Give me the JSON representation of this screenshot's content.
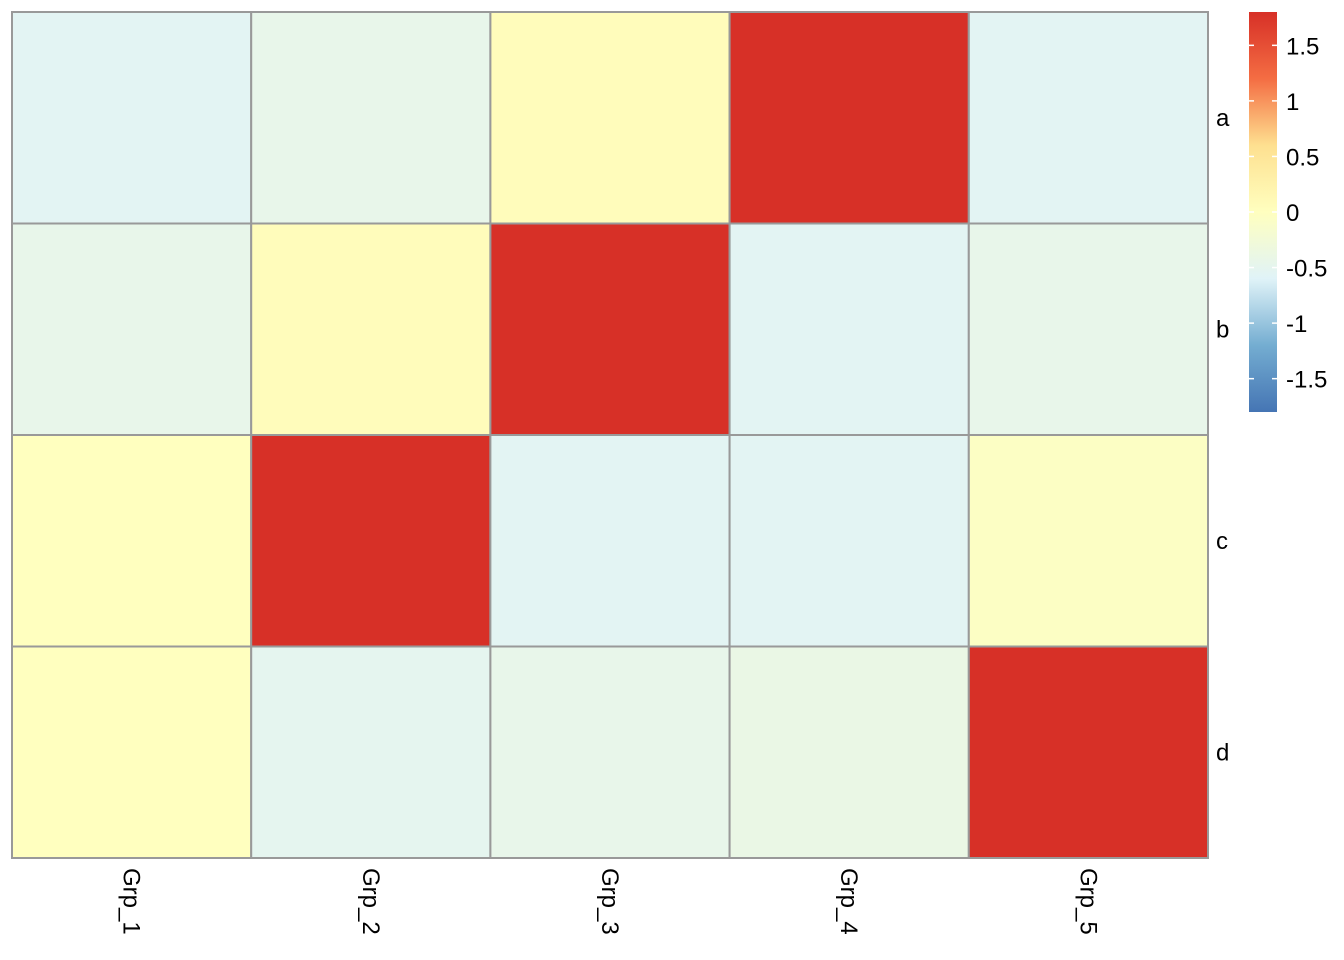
{
  "chart_data": {
    "type": "heatmap",
    "columns": [
      "Grp_1",
      "Grp_2",
      "Grp_3",
      "Grp_4",
      "Grp_5"
    ],
    "rows": [
      "a",
      "b",
      "c",
      "d"
    ],
    "values": [
      [
        -0.55,
        -0.45,
        0.05,
        1.8,
        -0.55
      ],
      [
        -0.45,
        0.05,
        1.8,
        -0.55,
        -0.45
      ],
      [
        0.0,
        1.8,
        -0.55,
        -0.55,
        -0.05
      ],
      [
        0.0,
        -0.5,
        -0.45,
        -0.4,
        1.8
      ]
    ],
    "color_scale": {
      "min": -1.8,
      "max": 1.8,
      "stops": [
        {
          "value": -1.8,
          "color": "#4575B4"
        },
        {
          "value": -1.2,
          "color": "#74ADD1"
        },
        {
          "value": -0.6,
          "color": "#E0F3F8"
        },
        {
          "value": 0.0,
          "color": "#FFFFBF"
        },
        {
          "value": 0.6,
          "color": "#FEE090"
        },
        {
          "value": 1.2,
          "color": "#F46D43"
        },
        {
          "value": 1.8,
          "color": "#D73027"
        }
      ]
    },
    "legend": {
      "placement": "right",
      "ticks": [
        1.5,
        1,
        0.5,
        0,
        -0.5,
        -1,
        -1.5
      ],
      "tick_labels": [
        "1.5",
        "1",
        "0.5",
        "0",
        "-0.5",
        "-1",
        "-1.5"
      ]
    },
    "cell_border_color": "#999999"
  }
}
